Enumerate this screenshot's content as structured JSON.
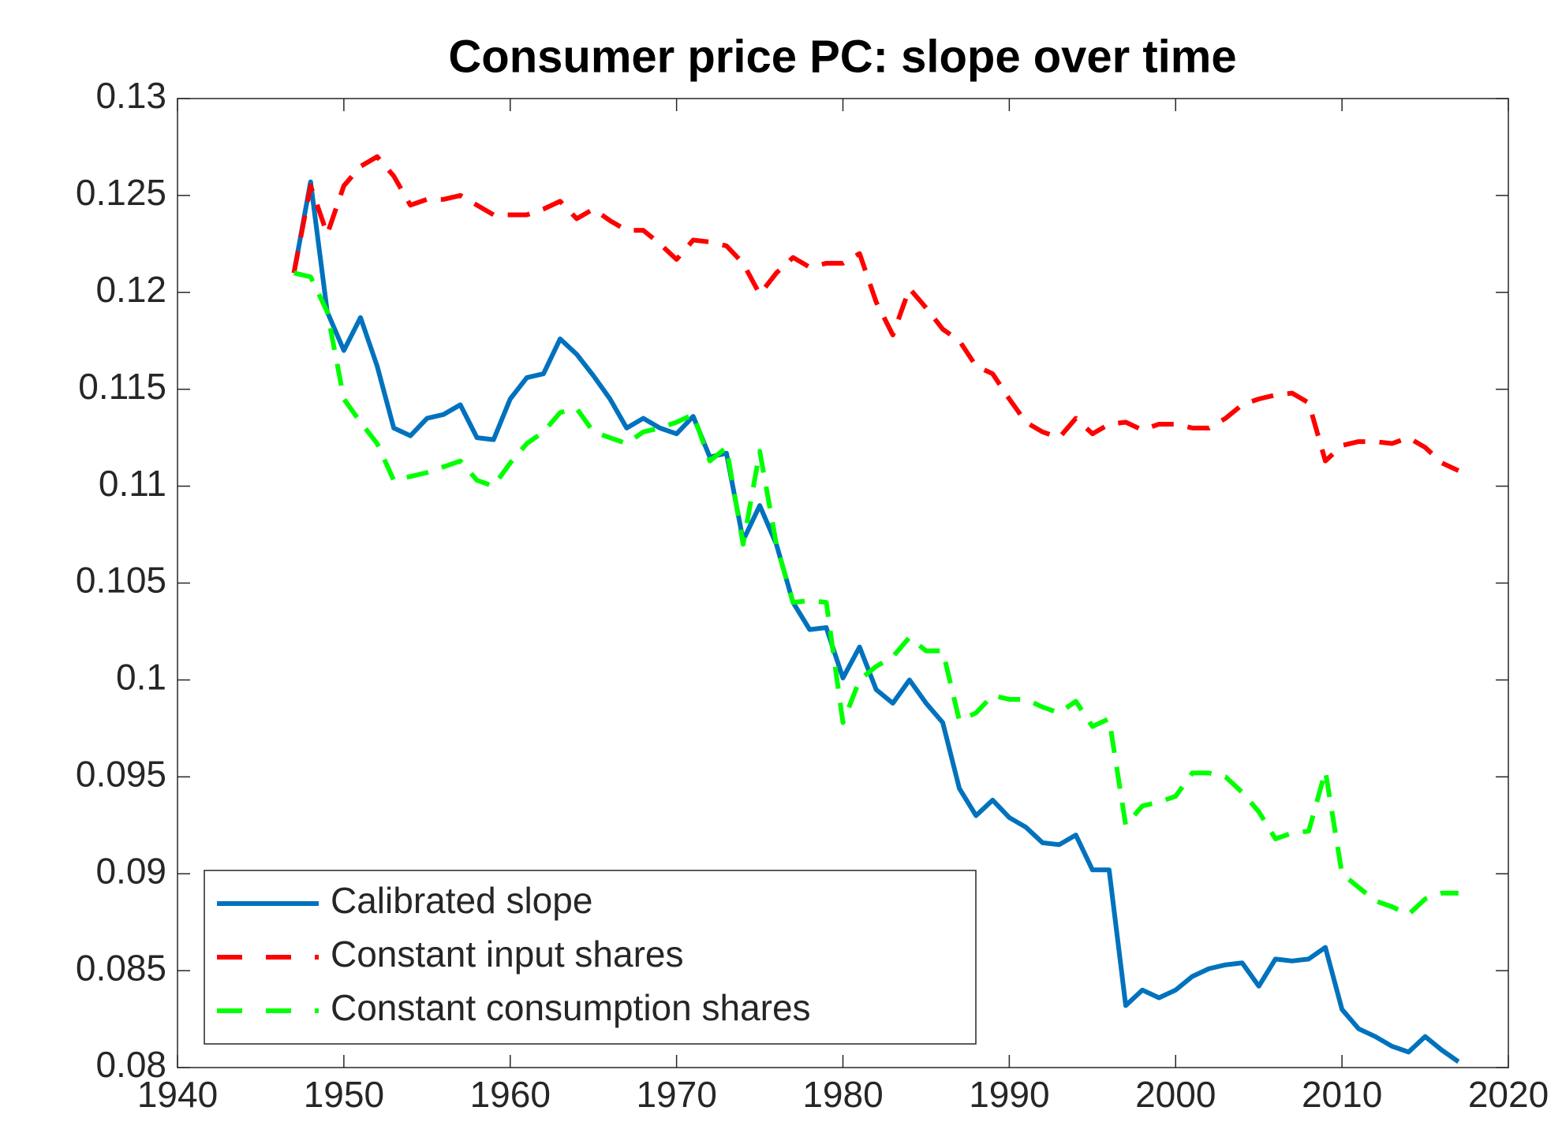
{
  "chart_data": {
    "type": "line",
    "title": "Consumer price PC: slope over time",
    "x": [
      1947,
      1948,
      1949,
      1950,
      1951,
      1952,
      1953,
      1954,
      1955,
      1956,
      1957,
      1958,
      1959,
      1960,
      1961,
      1962,
      1963,
      1964,
      1965,
      1966,
      1967,
      1968,
      1969,
      1970,
      1971,
      1972,
      1973,
      1974,
      1975,
      1976,
      1977,
      1978,
      1979,
      1980,
      1981,
      1982,
      1983,
      1984,
      1985,
      1986,
      1987,
      1988,
      1989,
      1990,
      1991,
      1992,
      1993,
      1994,
      1995,
      1996,
      1997,
      1998,
      1999,
      2000,
      2001,
      2002,
      2003,
      2004,
      2005,
      2006,
      2007,
      2008,
      2009,
      2010,
      2011,
      2012,
      2013,
      2014,
      2015,
      2016,
      2017
    ],
    "series": [
      {
        "name": "Calibrated slope",
        "color": "#0072bd",
        "dash": "solid",
        "values": [
          0.121,
          0.1257,
          0.119,
          0.117,
          0.1187,
          0.1162,
          0.113,
          0.1126,
          0.1135,
          0.1137,
          0.1142,
          0.1125,
          0.1124,
          0.1145,
          0.1156,
          0.1158,
          0.1176,
          0.1168,
          0.1157,
          0.1145,
          0.113,
          0.1135,
          0.113,
          0.1127,
          0.1136,
          0.1115,
          0.1117,
          0.1072,
          0.109,
          0.107,
          0.104,
          0.1026,
          0.1027,
          0.1001,
          0.1017,
          0.0995,
          0.0988,
          0.1,
          0.0988,
          0.0978,
          0.0944,
          0.093,
          0.0938,
          0.0929,
          0.0924,
          0.0916,
          0.0915,
          0.092,
          0.0902,
          0.0902,
          0.0832,
          0.084,
          0.0836,
          0.084,
          0.0847,
          0.0851,
          0.0853,
          0.0854,
          0.0842,
          0.0856,
          0.0855,
          0.0856,
          0.0862,
          0.083,
          0.082,
          0.0816,
          0.0811,
          0.0808,
          0.0816,
          0.0809,
          0.0803
        ]
      },
      {
        "name": "Constant input shares",
        "color": "#ff0000",
        "dash": "dashed",
        "values": [
          0.121,
          0.1255,
          0.123,
          0.1255,
          0.1265,
          0.127,
          0.126,
          0.1245,
          0.1248,
          0.1248,
          0.125,
          0.1245,
          0.124,
          0.124,
          0.124,
          0.1243,
          0.1247,
          0.1238,
          0.1243,
          0.1237,
          0.1232,
          0.1232,
          0.1225,
          0.1217,
          0.1227,
          0.1226,
          0.1224,
          0.1215,
          0.1199,
          0.121,
          0.1218,
          0.1213,
          0.1215,
          0.1215,
          0.122,
          0.1195,
          0.1178,
          0.1202,
          0.1192,
          0.1181,
          0.1175,
          0.1162,
          0.1158,
          0.1145,
          0.1133,
          0.1128,
          0.1125,
          0.1135,
          0.1127,
          0.1132,
          0.1133,
          0.1129,
          0.1132,
          0.1132,
          0.113,
          0.113,
          0.1135,
          0.1142,
          0.1145,
          0.1147,
          0.1148,
          0.1143,
          0.1113,
          0.1121,
          0.1123,
          0.1123,
          0.1122,
          0.1125,
          0.112,
          0.1112,
          0.1108
        ]
      },
      {
        "name": "Constant consumption shares",
        "color": "#00ff00",
        "dash": "dashed",
        "values": [
          0.121,
          0.1208,
          0.119,
          0.1145,
          0.1133,
          0.1122,
          0.1103,
          0.1105,
          0.1107,
          0.111,
          0.1113,
          0.1103,
          0.11,
          0.1112,
          0.1122,
          0.1128,
          0.1138,
          0.114,
          0.1128,
          0.1125,
          0.1122,
          0.1128,
          0.113,
          0.1133,
          0.1137,
          0.1113,
          0.112,
          0.107,
          0.1118,
          0.107,
          0.104,
          0.1041,
          0.104,
          0.0978,
          0.1,
          0.1007,
          0.1012,
          0.1022,
          0.1015,
          0.1015,
          0.0979,
          0.0983,
          0.0992,
          0.099,
          0.099,
          0.0986,
          0.0983,
          0.0989,
          0.0976,
          0.098,
          0.0925,
          0.0935,
          0.0937,
          0.094,
          0.0952,
          0.0952,
          0.095,
          0.0942,
          0.0932,
          0.0918,
          0.0921,
          0.0922,
          0.0953,
          0.09,
          0.0893,
          0.0886,
          0.0883,
          0.0879,
          0.0887,
          0.089,
          0.089
        ]
      }
    ],
    "xlim": [
      1940,
      2020
    ],
    "xticks": [
      1940,
      1950,
      1960,
      1970,
      1980,
      1990,
      2000,
      2010,
      2020
    ],
    "ylim": [
      0.08,
      0.13
    ],
    "yticks": [
      0.08,
      0.085,
      0.09,
      0.095,
      0.1,
      0.105,
      0.11,
      0.115,
      0.12,
      0.125,
      0.13
    ],
    "grid": false,
    "legend": "lower left"
  }
}
